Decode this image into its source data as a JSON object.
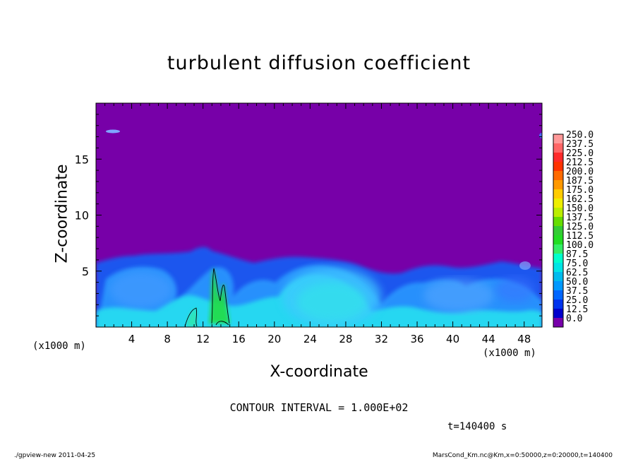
{
  "chart_data": {
    "type": "heatmap",
    "title": "turbulent diffusion coefficient",
    "xlabel": "X-coordinate",
    "ylabel": "Z-coordinate",
    "x_unit": "(x1000 m)",
    "y_unit": "(x1000 m)",
    "xlim": [
      0,
      50
    ],
    "ylim": [
      0,
      20
    ],
    "x_ticks": [
      4,
      8,
      12,
      16,
      20,
      24,
      28,
      32,
      36,
      40,
      44,
      48
    ],
    "y_ticks": [
      5,
      10,
      15
    ],
    "contour_lines": [
      100
    ],
    "colorbar": {
      "levels": [
        "250.0",
        "237.5",
        "225.0",
        "212.5",
        "200.0",
        "187.5",
        "175.0",
        "162.5",
        "150.0",
        "137.5",
        "125.0",
        "112.5",
        "100.0",
        "87.5",
        "75.0",
        "62.5",
        "50.0",
        "37.5",
        "25.0",
        "12.5",
        "0.0"
      ],
      "colors": [
        "#ff9999",
        "#ff6666",
        "#ff2a2a",
        "#ff3300",
        "#ff6a00",
        "#ff9900",
        "#ffcc00",
        "#eeee00",
        "#bbee00",
        "#66dd00",
        "#33cc33",
        "#22dd22",
        "#33ee66",
        "#00ffcc",
        "#00e5e5",
        "#00bbee",
        "#0099ff",
        "#0066ff",
        "#0033ee",
        "#0000cc",
        "#7700aa"
      ]
    },
    "background_value_color": "#7700a8"
  },
  "annotations": {
    "contour_interval": "CONTOUR INTERVAL = 1.000E+02",
    "time": "t=140400 s"
  },
  "footer": {
    "left": "./gpview-new   2011-04-25",
    "right": "MarsCond_Km.nc@Km,x=0:50000,z=0:20000,t=140400"
  }
}
